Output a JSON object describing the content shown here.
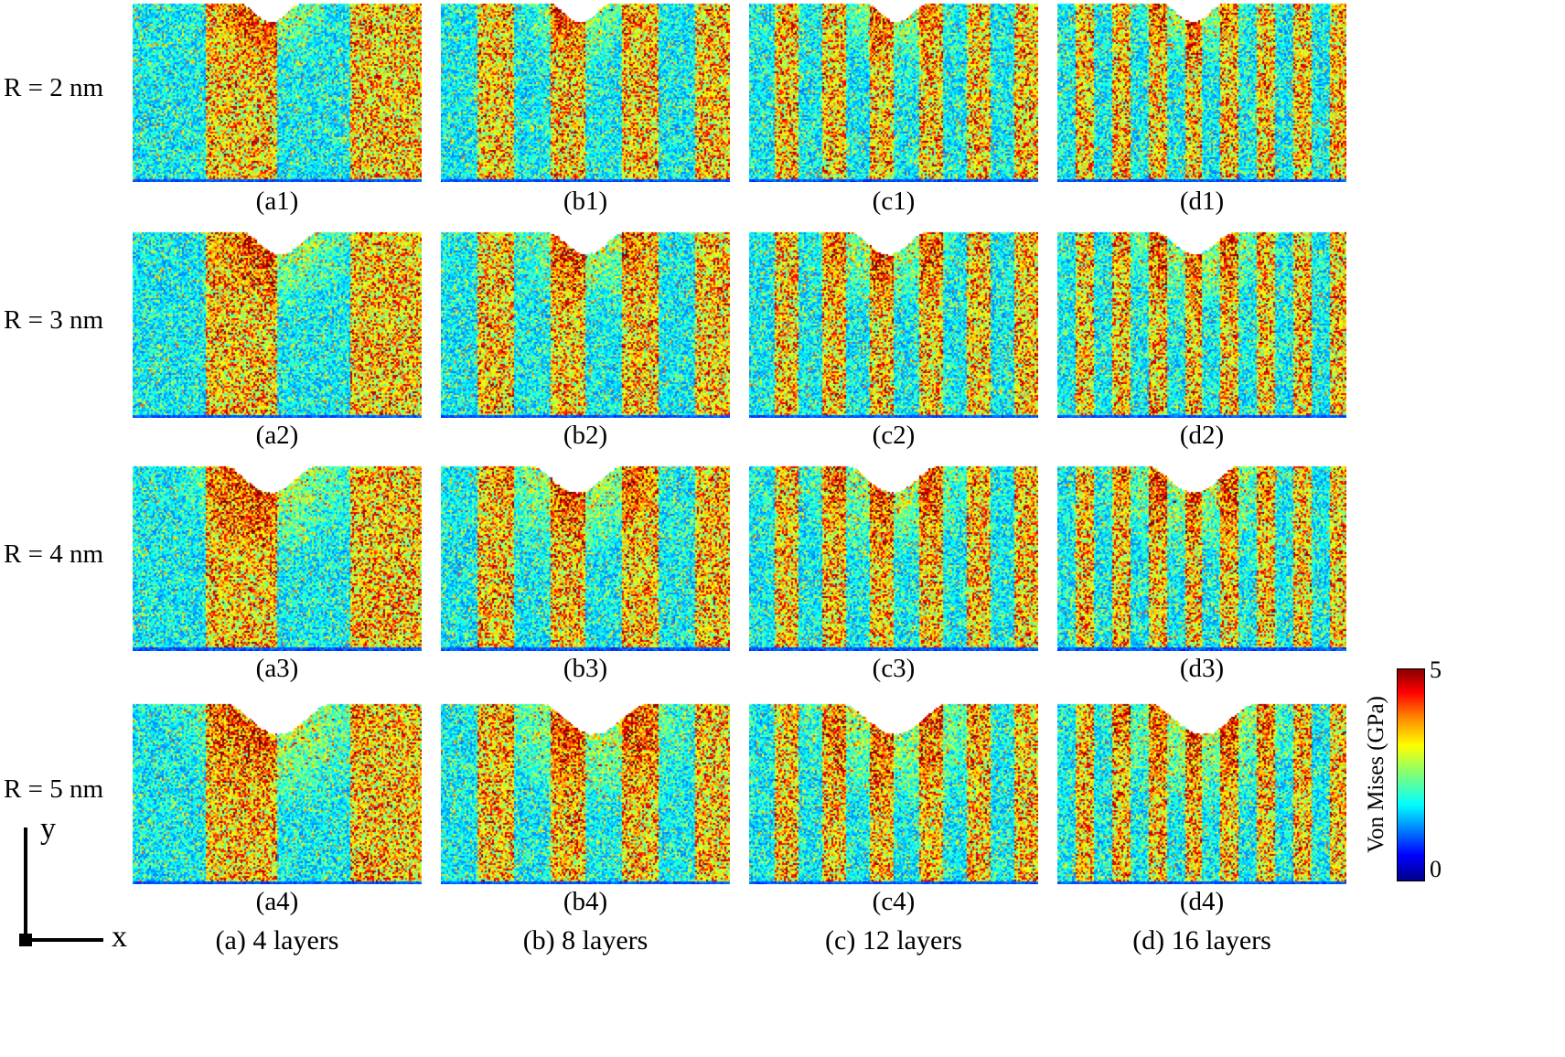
{
  "figure": {
    "rows": [
      {
        "radius_label": "R = 2 nm",
        "radius_nm": 2,
        "panel_captions": [
          "(a1)",
          "(b1)",
          "(c1)",
          "(d1)"
        ]
      },
      {
        "radius_label": "R = 3 nm",
        "radius_nm": 3,
        "panel_captions": [
          "(a2)",
          "(b2)",
          "(c2)",
          "(d2)"
        ]
      },
      {
        "radius_label": "R = 4 nm",
        "radius_nm": 4,
        "panel_captions": [
          "(a3)",
          "(b3)",
          "(c3)",
          "(d3)"
        ]
      },
      {
        "radius_label": "R = 5 nm",
        "radius_nm": 5,
        "panel_captions": [
          "(a4)",
          "(b4)",
          "(c4)",
          "(d4)"
        ]
      }
    ],
    "columns": [
      {
        "caption": "(a) 4 layers",
        "layers": 4
      },
      {
        "caption": "(b) 8 layers",
        "layers": 8
      },
      {
        "caption": "(c) 12 layers",
        "layers": 12
      },
      {
        "caption": "(d) 16 layers",
        "layers": 16
      }
    ],
    "colorbar": {
      "title": "Von Mises (GPa)",
      "max_label": "5",
      "min_label": "0",
      "min_value": 0,
      "max_value": 5,
      "colormap": "jet",
      "gradient_stops": [
        "#000088",
        "#0000ff 12%",
        "#00ffff 36%",
        "#7dff7a 50%",
        "#ffff00 64%",
        "#ff8800 77%",
        "#ff0000 89%",
        "#880000"
      ]
    },
    "axes": {
      "x_label": "x",
      "y_label": "y"
    }
  }
}
